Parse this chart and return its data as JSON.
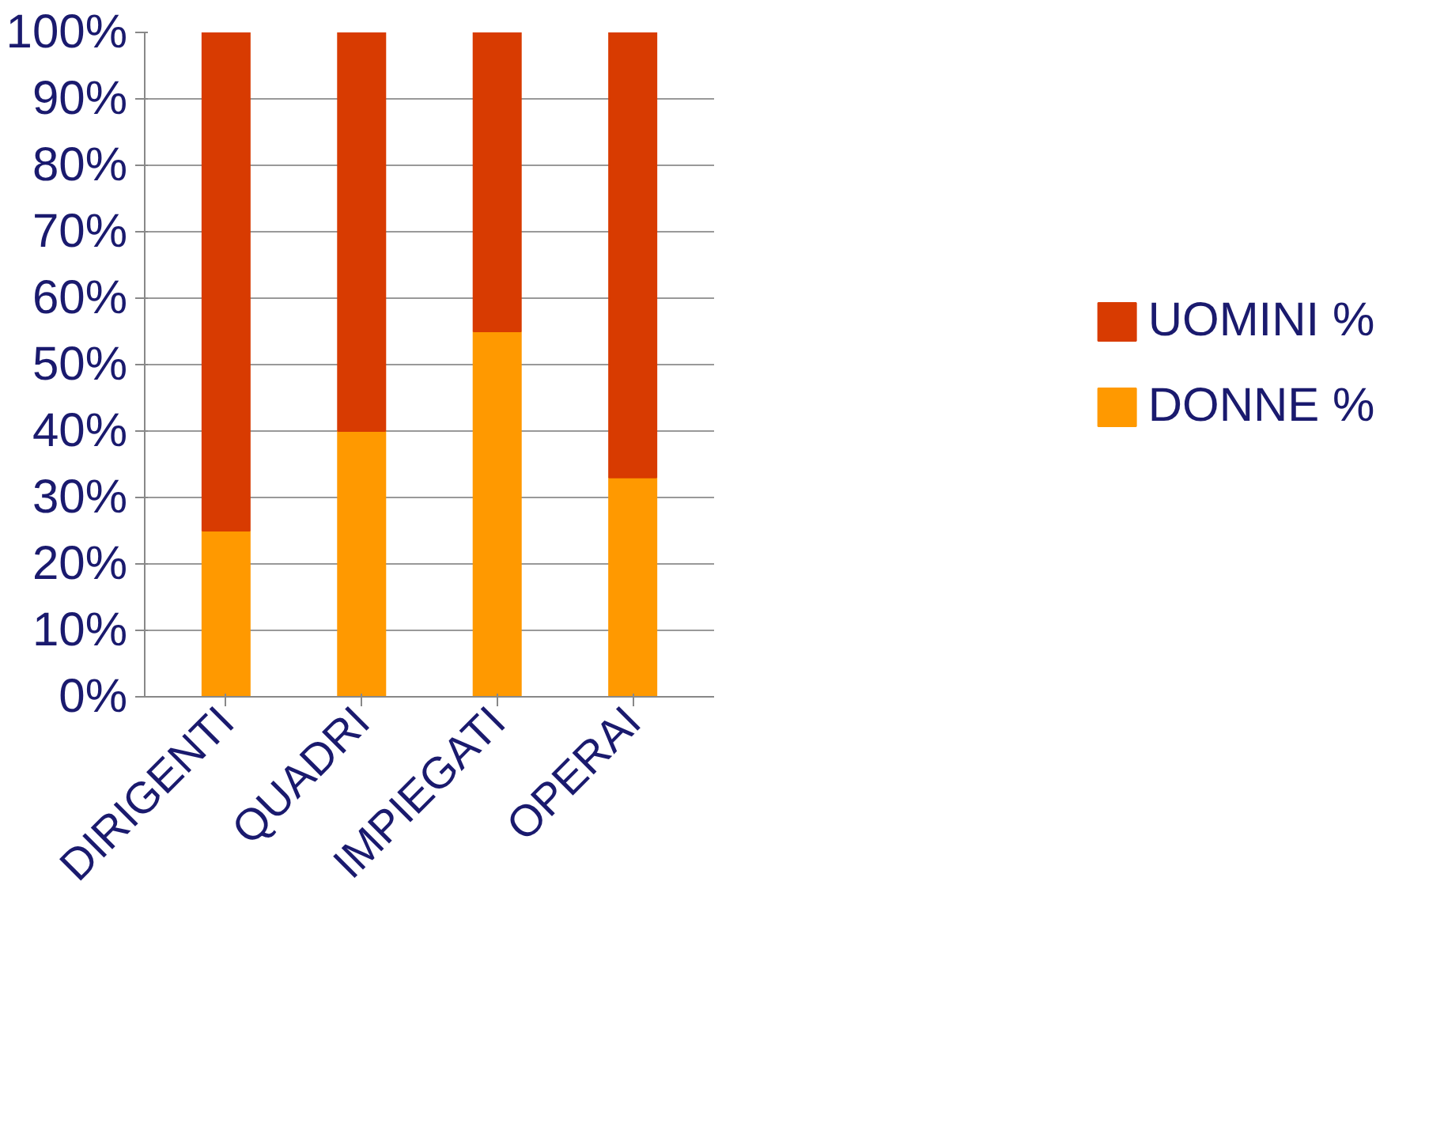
{
  "chart_data": {
    "type": "bar",
    "stacked": true,
    "categories": [
      "DIRIGENTI",
      "QUADRI",
      "IMPIEGATI",
      "OPERAI"
    ],
    "series": [
      {
        "name": "DONNE %",
        "color": "#ff9900",
        "values": [
          25,
          40,
          55,
          33
        ]
      },
      {
        "name": "UOMINI %",
        "color": "#d83b01",
        "values": [
          75,
          60,
          45,
          67
        ]
      }
    ],
    "ylim": [
      0,
      100
    ],
    "yticks": [
      {
        "value": 0,
        "label": "0%"
      },
      {
        "value": 10,
        "label": "10%"
      },
      {
        "value": 20,
        "label": "20%"
      },
      {
        "value": 30,
        "label": "30%"
      },
      {
        "value": 40,
        "label": "40%"
      },
      {
        "value": 50,
        "label": "50%"
      },
      {
        "value": 60,
        "label": "60%"
      },
      {
        "value": 70,
        "label": "70%"
      },
      {
        "value": 80,
        "label": "80%"
      },
      {
        "value": 90,
        "label": "90%"
      },
      {
        "value": 100,
        "label": "100%"
      }
    ],
    "grid": "y",
    "legend": "right"
  }
}
